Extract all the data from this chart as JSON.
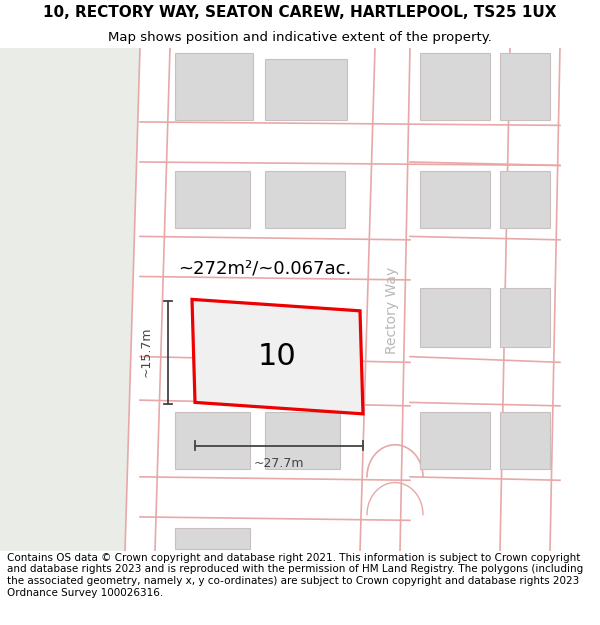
{
  "title_line1": "10, RECTORY WAY, SEATON CAREW, HARTLEPOOL, TS25 1UX",
  "title_line2": "Map shows position and indicative extent of the property.",
  "footer_text": "Contains OS data © Crown copyright and database right 2021. This information is subject to Crown copyright and database rights 2023 and is reproduced with the permission of HM Land Registry. The polygons (including the associated geometry, namely x, y co-ordinates) are subject to Crown copyright and database rights 2023 Ordnance Survey 100026316.",
  "map_bg": "#f8f8f5",
  "map_bg_left": "#eaece7",
  "road_line_color": "#e8a8a8",
  "building_fill": "#d8d8d8",
  "building_outline": "#c8c0c0",
  "prop_color": "#ee0000",
  "prop_fill": "#f0f0f0",
  "area_label": "~272m²/~0.067ac.",
  "width_label": "~27.7m",
  "height_label": "~15.7m",
  "prop_number": "10",
  "road_name": "Rectory Way",
  "dim_color": "#444444",
  "road_text_color": "#b8b8b8",
  "title_fs": 11,
  "subtitle_fs": 9.5,
  "footer_fs": 7.5,
  "area_fs": 13,
  "number_fs": 22,
  "dim_fs": 9,
  "road_fs": 10
}
